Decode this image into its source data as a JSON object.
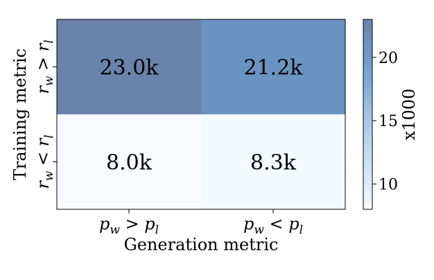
{
  "chart_data": {
    "type": "heatmap",
    "x_categories": [
      "p_w > p_l",
      "p_w < p_l"
    ],
    "y_categories": [
      "r_w > r_l",
      "r_w < r_l"
    ],
    "values": [
      [
        23.0,
        21.2
      ],
      [
        8.0,
        8.3
      ]
    ],
    "cell_labels": [
      [
        "23.0k",
        "21.2k"
      ],
      [
        "8.0k",
        "8.3k"
      ]
    ],
    "xlabel": "Generation metric",
    "ylabel": "Training metric",
    "colorbar": {
      "label": "x1000",
      "range": [
        8.0,
        23.0
      ],
      "ticks": [
        10,
        15,
        20
      ],
      "tick_labels": [
        "10",
        "15",
        "20"
      ],
      "color_low": "#f7fbff",
      "color_high": "#6a83ab"
    },
    "x_tick_labels": [
      {
        "base": "p",
        "sub1": "w",
        "op": ">",
        "base2": "p",
        "sub2": "l"
      },
      {
        "base": "p",
        "sub1": "w",
        "op": "<",
        "base2": "p",
        "sub2": "l"
      }
    ],
    "y_tick_labels": [
      {
        "base": "r",
        "sub1": "w",
        "op": ">",
        "base2": "r",
        "sub2": "l"
      },
      {
        "base": "r",
        "sub1": "w",
        "op": "<",
        "base2": "r",
        "sub2": "l"
      }
    ]
  }
}
